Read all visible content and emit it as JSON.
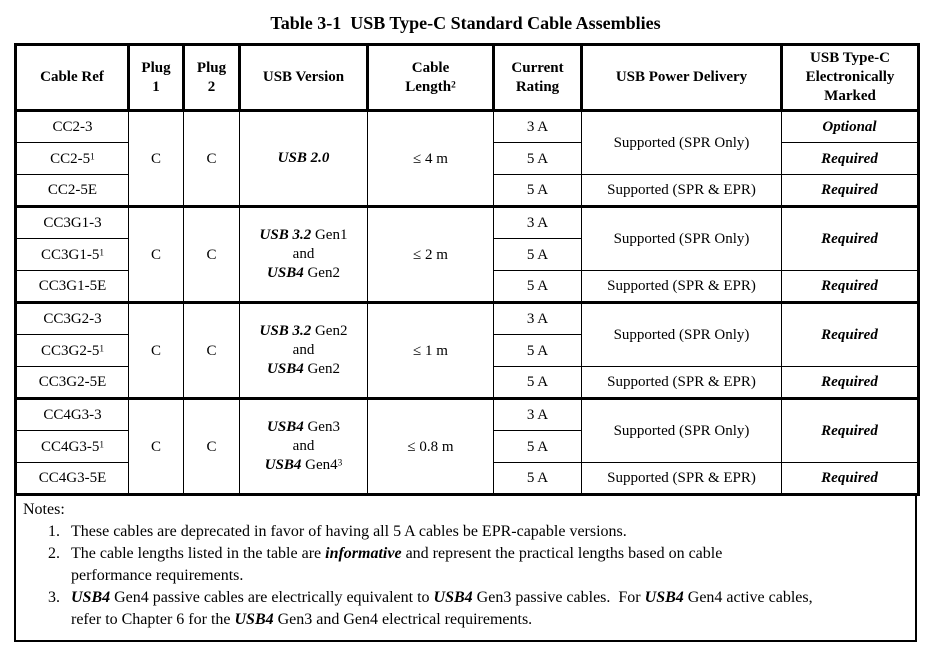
{
  "title": "Table 3-1  USB Type-C Standard Cable Assemblies",
  "table": {
    "headers": [
      {
        "lines": [
          [
            {
              "t": "Cable Ref"
            }
          ]
        ]
      },
      {
        "lines": [
          [
            {
              "t": "Plug"
            }
          ],
          [
            {
              "t": "1"
            }
          ]
        ]
      },
      {
        "lines": [
          [
            {
              "t": "Plug"
            }
          ],
          [
            {
              "t": "2"
            }
          ]
        ]
      },
      {
        "lines": [
          [
            {
              "t": "USB Version"
            }
          ]
        ]
      },
      {
        "lines": [
          [
            {
              "t": "Cable"
            }
          ],
          [
            {
              "t": "Length"
            },
            {
              "t": "2",
              "sup": true
            }
          ]
        ]
      },
      {
        "lines": [
          [
            {
              "t": "Current"
            }
          ],
          [
            {
              "t": "Rating"
            }
          ]
        ]
      },
      {
        "lines": [
          [
            {
              "t": "USB Power Delivery"
            }
          ]
        ]
      },
      {
        "lines": [
          [
            {
              "t": "USB Type-C"
            }
          ],
          [
            {
              "t": "Electronically"
            }
          ],
          [
            {
              "t": "Marked"
            }
          ]
        ]
      }
    ],
    "groups": [
      {
        "cable_refs": [
          [
            {
              "t": "CC2-3"
            }
          ],
          [
            {
              "t": "CC2-5"
            },
            {
              "t": "1",
              "sup": true
            }
          ],
          [
            {
              "t": "CC2-5E"
            }
          ]
        ],
        "plug1": "C",
        "plug2": "C",
        "usb_version": [
          [
            {
              "t": "USB 2.0",
              "b": true,
              "i": true
            }
          ]
        ],
        "cable_length": "≤ 4 m",
        "currents": [
          "3 A",
          "5 A",
          "5 A"
        ],
        "pd_top": "Supported (SPR Only)",
        "pd_bottom": "Supported (SPR & EPR)",
        "marked": [
          [
            {
              "t": "Optional",
              "b": true,
              "i": true
            }
          ],
          [
            {
              "t": "Required",
              "b": true,
              "i": true
            }
          ],
          [
            {
              "t": "Required",
              "b": true,
              "i": true
            }
          ]
        ]
      },
      {
        "cable_refs": [
          [
            {
              "t": "CC3G1-3"
            }
          ],
          [
            {
              "t": "CC3G1-5"
            },
            {
              "t": "1",
              "sup": true
            }
          ],
          [
            {
              "t": "CC3G1-5E"
            }
          ]
        ],
        "plug1": "C",
        "plug2": "C",
        "usb_version": [
          [
            {
              "t": "USB 3.2",
              "b": true,
              "i": true
            },
            {
              "t": " Gen1"
            }
          ],
          [
            {
              "t": "and"
            }
          ],
          [
            {
              "t": "USB4",
              "b": true,
              "i": true
            },
            {
              "t": " Gen2"
            }
          ]
        ],
        "cable_length": "≤ 2 m",
        "currents": [
          "3 A",
          "5 A",
          "5 A"
        ],
        "pd_top": "Supported (SPR Only)",
        "pd_bottom": "Supported (SPR & EPR)",
        "marked_top": [
          {
            "t": "Required",
            "b": true,
            "i": true
          }
        ],
        "marked_bottom": [
          {
            "t": "Required",
            "b": true,
            "i": true
          }
        ]
      },
      {
        "cable_refs": [
          [
            {
              "t": "CC3G2-3"
            }
          ],
          [
            {
              "t": "CC3G2-5"
            },
            {
              "t": "1",
              "sup": true
            }
          ],
          [
            {
              "t": "CC3G2-5E"
            }
          ]
        ],
        "plug1": "C",
        "plug2": "C",
        "usb_version": [
          [
            {
              "t": "USB 3.2",
              "b": true,
              "i": true
            },
            {
              "t": " Gen2"
            }
          ],
          [
            {
              "t": "and"
            }
          ],
          [
            {
              "t": "USB4",
              "b": true,
              "i": true
            },
            {
              "t": " Gen2"
            }
          ]
        ],
        "cable_length": "≤ 1 m",
        "currents": [
          "3 A",
          "5 A",
          "5 A"
        ],
        "pd_top": "Supported (SPR Only)",
        "pd_bottom": "Supported (SPR & EPR)",
        "marked_top": [
          {
            "t": "Required",
            "b": true,
            "i": true
          }
        ],
        "marked_bottom": [
          {
            "t": "Required",
            "b": true,
            "i": true
          }
        ]
      },
      {
        "cable_refs": [
          [
            {
              "t": "CC4G3-3"
            }
          ],
          [
            {
              "t": "CC4G3-5"
            },
            {
              "t": "1",
              "sup": true
            }
          ],
          [
            {
              "t": "CC4G3-5E"
            }
          ]
        ],
        "plug1": "C",
        "plug2": "C",
        "usb_version": [
          [
            {
              "t": "USB4",
              "b": true,
              "i": true
            },
            {
              "t": " Gen3"
            }
          ],
          [
            {
              "t": "and"
            }
          ],
          [
            {
              "t": "USB4",
              "b": true,
              "i": true
            },
            {
              "t": " Gen4"
            },
            {
              "t": "3",
              "sup": true
            }
          ]
        ],
        "cable_length": "≤ 0.8 m",
        "currents": [
          "3 A",
          "5 A",
          "5 A"
        ],
        "pd_top": "Supported (SPR Only)",
        "pd_bottom": "Supported (SPR & EPR)",
        "marked_top": [
          {
            "t": "Required",
            "b": true,
            "i": true
          }
        ],
        "marked_bottom": [
          {
            "t": "Required",
            "b": true,
            "i": true
          }
        ]
      }
    ]
  },
  "notes": {
    "label": "Notes:",
    "items": [
      {
        "num": "1.",
        "lines": [
          [
            {
              "t": "These cables are deprecated in favor of having all 5 A cables be EPR-capable versions."
            }
          ]
        ]
      },
      {
        "num": "2.",
        "lines": [
          [
            {
              "t": "The cable lengths listed in the table are "
            },
            {
              "t": "informative",
              "b": true,
              "i": true
            },
            {
              "t": " and represent the practical lengths based on cable"
            }
          ],
          [
            {
              "t": "performance requirements."
            }
          ]
        ]
      },
      {
        "num": "3.",
        "lines": [
          [
            {
              "t": "USB4",
              "b": true,
              "i": true
            },
            {
              "t": " Gen4 passive cables are electrically equivalent to "
            },
            {
              "t": "USB4",
              "b": true,
              "i": true
            },
            {
              "t": " Gen3 passive cables.  For "
            },
            {
              "t": "USB4",
              "b": true,
              "i": true
            },
            {
              "t": " Gen4 active cables,"
            }
          ],
          [
            {
              "t": "refer to Chapter 6 for the "
            },
            {
              "t": "USB4",
              "b": true,
              "i": true
            },
            {
              "t": " Gen3 and Gen4 electrical requirements."
            }
          ]
        ]
      }
    ]
  }
}
